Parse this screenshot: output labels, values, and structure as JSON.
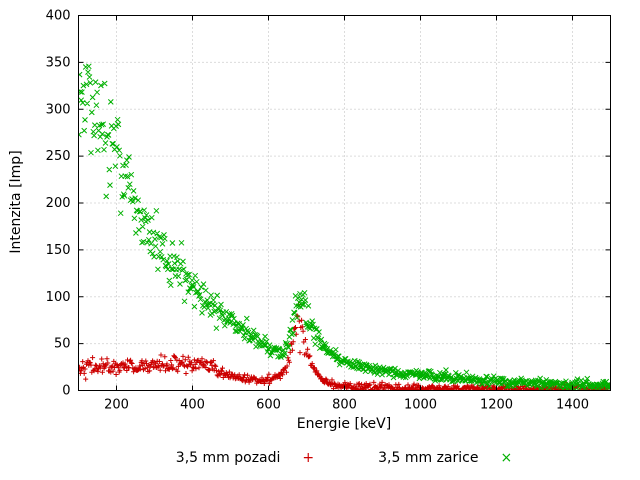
{
  "figure": {
    "background": "#ffffff",
    "border_color": "#000000",
    "grid_color": "#b9b9b9",
    "text_color": "#000000"
  },
  "chart_data": {
    "type": "scatter",
    "title": "",
    "xlabel": "Energie [keV]",
    "ylabel": "Intenzita [Imp]",
    "xlim": [
      100,
      1500
    ],
    "ylim": [
      0,
      400
    ],
    "xticks": [
      200,
      400,
      600,
      800,
      1000,
      1200,
      1400
    ],
    "yticks": [
      0,
      50,
      100,
      150,
      200,
      250,
      300,
      350,
      400
    ],
    "grid": true,
    "legend_position": "bottom-center",
    "series": [
      {
        "name": "3,5 mm pozadi",
        "marker": "plus",
        "color": "#cc0000",
        "points": 700,
        "noise_rel": 0.16,
        "noise_min": 2.0,
        "seed": 42,
        "trend_x": [
          100,
          150,
          200,
          250,
          300,
          350,
          400,
          430,
          460,
          480,
          500,
          530,
          560,
          600,
          625,
          645,
          660,
          672,
          685,
          700,
          715,
          735,
          760,
          790,
          830,
          880,
          950,
          1050,
          1200,
          1350,
          1500
        ],
        "trend_y": [
          26,
          25,
          26,
          25,
          27,
          28,
          28,
          27,
          23,
          18,
          15,
          13,
          12,
          12,
          14,
          22,
          45,
          72,
          68,
          45,
          28,
          15,
          8,
          5,
          4,
          3,
          2.5,
          2,
          2,
          2,
          2
        ]
      },
      {
        "name": "3,5 mm zarice",
        "marker": "cross",
        "color": "#00b000",
        "points": 700,
        "noise_rel": 0.09,
        "noise_min": 2.5,
        "seed": 1042,
        "trend_x": [
          100,
          125,
          150,
          175,
          200,
          230,
          260,
          290,
          320,
          350,
          380,
          410,
          440,
          470,
          500,
          530,
          560,
          590,
          615,
          635,
          655,
          670,
          682,
          695,
          710,
          725,
          745,
          770,
          800,
          840,
          890,
          950,
          1020,
          1100,
          1200,
          1300,
          1400,
          1500
        ],
        "trend_y": [
          315,
          300,
          288,
          272,
          252,
          215,
          185,
          162,
          146,
          132,
          118,
          106,
          95,
          85,
          75,
          66,
          57,
          48,
          42,
          40,
          55,
          85,
          100,
          92,
          75,
          60,
          48,
          38,
          30,
          26,
          22,
          19,
          16,
          13,
          10,
          8,
          7,
          6
        ]
      }
    ]
  }
}
